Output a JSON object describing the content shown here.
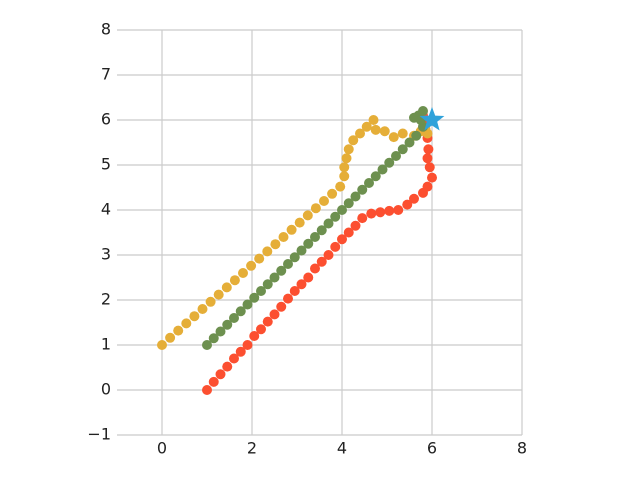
{
  "chart_data": {
    "type": "scatter",
    "xlim": [
      -1,
      8
    ],
    "ylim": [
      -1,
      8
    ],
    "xticks": [
      0,
      2,
      4,
      6,
      8
    ],
    "yticks": [
      {
        "value": -1,
        "label": "−1"
      },
      0,
      1,
      2,
      3,
      4,
      5,
      6,
      7,
      8
    ],
    "grid": true,
    "series": [
      {
        "color": "#fc4f30",
        "marker": "circle",
        "x": [
          1,
          1.15,
          1.3,
          1.45,
          1.6,
          1.75,
          1.9,
          2.05,
          2.2,
          2.35,
          2.5,
          2.65,
          2.8,
          2.95,
          3.1,
          3.25,
          3.4,
          3.55,
          3.7,
          3.85,
          4.0,
          4.15,
          4.3,
          4.45,
          4.65,
          4.85,
          5.05,
          5.25,
          5.45,
          5.6,
          5.8,
          5.9,
          6.0,
          5.95,
          5.9,
          5.92,
          5.9,
          5.85,
          5.8,
          5.8
        ],
        "values": [
          0,
          0.18,
          0.35,
          0.52,
          0.7,
          0.85,
          1.0,
          1.2,
          1.35,
          1.52,
          1.68,
          1.85,
          2.03,
          2.2,
          2.35,
          2.5,
          2.7,
          2.85,
          3.0,
          3.18,
          3.35,
          3.5,
          3.65,
          3.82,
          3.92,
          3.95,
          3.98,
          4.0,
          4.12,
          4.25,
          4.38,
          4.52,
          4.72,
          4.95,
          5.15,
          5.35,
          5.6,
          5.8,
          6.0,
          6.1
        ]
      },
      {
        "color": "#e5ae38",
        "marker": "circle",
        "x": [
          0,
          0.18,
          0.36,
          0.54,
          0.72,
          0.9,
          1.08,
          1.26,
          1.44,
          1.62,
          1.8,
          1.98,
          2.16,
          2.34,
          2.52,
          2.7,
          2.88,
          3.06,
          3.24,
          3.42,
          3.6,
          3.78,
          3.96,
          4.05,
          4.05,
          4.1,
          4.15,
          4.25,
          4.4,
          4.55,
          4.7,
          4.75,
          4.95,
          5.15,
          5.35,
          5.6,
          5.75,
          5.85,
          5.9
        ],
        "values": [
          1,
          1.16,
          1.32,
          1.48,
          1.64,
          1.8,
          1.96,
          2.12,
          2.28,
          2.44,
          2.6,
          2.76,
          2.92,
          3.08,
          3.24,
          3.4,
          3.56,
          3.72,
          3.88,
          4.04,
          4.2,
          4.36,
          4.52,
          4.75,
          4.95,
          5.15,
          5.35,
          5.55,
          5.7,
          5.85,
          6.0,
          5.78,
          5.75,
          5.62,
          5.7,
          5.65,
          5.75,
          5.8,
          5.7
        ]
      },
      {
        "color": "#6d904f",
        "marker": "circle",
        "x": [
          1,
          1.15,
          1.3,
          1.45,
          1.6,
          1.75,
          1.9,
          2.05,
          2.2,
          2.35,
          2.5,
          2.65,
          2.8,
          2.95,
          3.1,
          3.25,
          3.4,
          3.55,
          3.7,
          3.85,
          4.0,
          4.15,
          4.3,
          4.45,
          4.6,
          4.75,
          4.9,
          5.05,
          5.2,
          5.35,
          5.5,
          5.65,
          5.8,
          5.6,
          5.7,
          5.8,
          5.75
        ],
        "values": [
          1,
          1.15,
          1.3,
          1.45,
          1.6,
          1.75,
          1.9,
          2.05,
          2.2,
          2.35,
          2.5,
          2.65,
          2.8,
          2.95,
          3.1,
          3.25,
          3.4,
          3.55,
          3.7,
          3.85,
          4.0,
          4.15,
          4.3,
          4.45,
          4.6,
          4.75,
          4.9,
          5.05,
          5.2,
          5.35,
          5.5,
          5.65,
          5.85,
          6.05,
          6.1,
          6.2,
          6.0
        ]
      },
      {
        "color": "#30a2da",
        "marker": "star",
        "x": [
          6
        ],
        "values": [
          6
        ]
      }
    ]
  }
}
